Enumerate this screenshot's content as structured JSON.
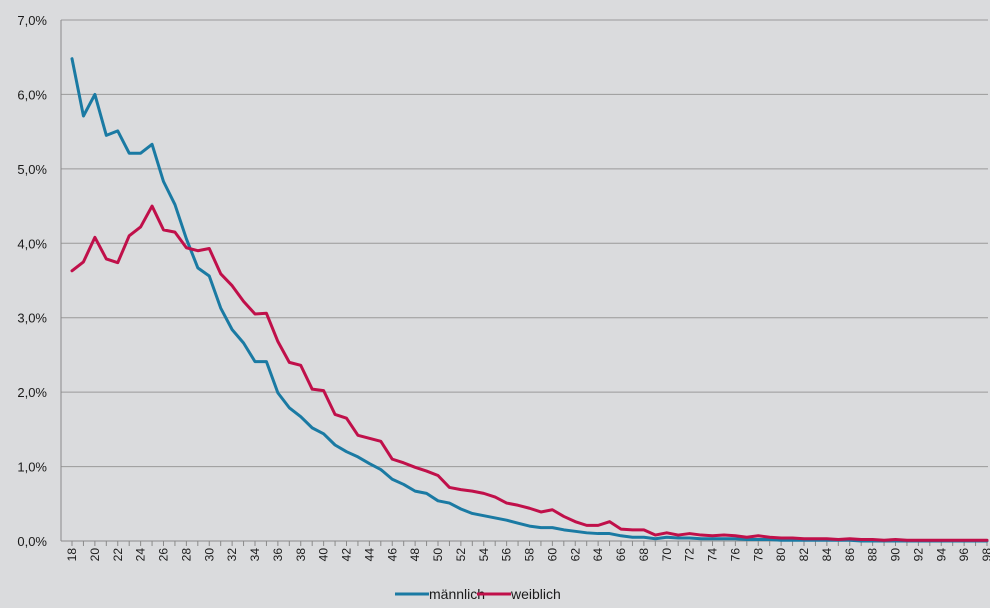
{
  "chart_data": {
    "type": "line",
    "x": [
      18,
      19,
      20,
      21,
      22,
      23,
      24,
      25,
      26,
      27,
      28,
      29,
      30,
      31,
      32,
      33,
      34,
      35,
      36,
      37,
      38,
      39,
      40,
      41,
      42,
      43,
      44,
      45,
      46,
      47,
      48,
      49,
      50,
      51,
      52,
      53,
      54,
      55,
      56,
      57,
      58,
      59,
      60,
      61,
      62,
      63,
      64,
      65,
      66,
      67,
      68,
      69,
      70,
      71,
      72,
      73,
      74,
      75,
      76,
      77,
      78,
      79,
      80,
      81,
      82,
      83,
      84,
      85,
      86,
      87,
      88,
      89,
      90,
      91,
      92,
      93,
      94,
      95,
      96,
      97,
      98
    ],
    "x_tick_labels": [
      "18",
      "20",
      "22",
      "24",
      "26",
      "28",
      "30",
      "32",
      "34",
      "36",
      "38",
      "40",
      "42",
      "44",
      "46",
      "48",
      "50",
      "52",
      "54",
      "56",
      "58",
      "60",
      "62",
      "64",
      "66",
      "68",
      "70",
      "72",
      "74",
      "76",
      "78",
      "80",
      "82",
      "84",
      "86",
      "88",
      "90",
      "92",
      "94",
      "96",
      "98"
    ],
    "y_tick_labels": [
      "0,0%",
      "1,0%",
      "2,0%",
      "3,0%",
      "4,0%",
      "5,0%",
      "6,0%",
      "7,0%"
    ],
    "ylim": [
      0,
      7
    ],
    "grid": true,
    "legend_position": "bottom",
    "series": [
      {
        "name": "männlich",
        "color": "#1a7aa3",
        "values": [
          6.48,
          5.71,
          6.0,
          5.45,
          5.51,
          5.21,
          5.21,
          5.33,
          4.83,
          4.52,
          4.06,
          3.67,
          3.56,
          3.13,
          2.84,
          2.66,
          2.41,
          2.41,
          1.99,
          1.79,
          1.67,
          1.52,
          1.44,
          1.29,
          1.2,
          1.13,
          1.04,
          0.96,
          0.83,
          0.76,
          0.67,
          0.64,
          0.54,
          0.51,
          0.43,
          0.37,
          0.34,
          0.31,
          0.28,
          0.24,
          0.2,
          0.18,
          0.18,
          0.15,
          0.13,
          0.11,
          0.1,
          0.1,
          0.07,
          0.05,
          0.05,
          0.03,
          0.05,
          0.04,
          0.04,
          0.03,
          0.03,
          0.03,
          0.03,
          0.02,
          0.02,
          0.02,
          0.01,
          0.01,
          0.01,
          0.01,
          0.01,
          0.01,
          0.01,
          0.0,
          0.0,
          0.0,
          0.0,
          0.0,
          0.0,
          0.0,
          0.0,
          0.0,
          0.0,
          0.0,
          0.0
        ]
      },
      {
        "name": "weiblich",
        "color": "#c0104a",
        "values": [
          3.63,
          3.75,
          4.08,
          3.79,
          3.74,
          4.1,
          4.22,
          4.5,
          4.18,
          4.15,
          3.94,
          3.9,
          3.93,
          3.59,
          3.43,
          3.22,
          3.05,
          3.06,
          2.68,
          2.4,
          2.36,
          2.04,
          2.02,
          1.7,
          1.65,
          1.42,
          1.38,
          1.34,
          1.1,
          1.05,
          0.99,
          0.94,
          0.88,
          0.72,
          0.69,
          0.67,
          0.64,
          0.59,
          0.51,
          0.48,
          0.44,
          0.39,
          0.42,
          0.33,
          0.26,
          0.21,
          0.21,
          0.26,
          0.16,
          0.15,
          0.15,
          0.08,
          0.11,
          0.08,
          0.1,
          0.08,
          0.07,
          0.08,
          0.07,
          0.05,
          0.07,
          0.05,
          0.04,
          0.04,
          0.03,
          0.03,
          0.03,
          0.02,
          0.03,
          0.02,
          0.02,
          0.01,
          0.02,
          0.01,
          0.01,
          0.01,
          0.01,
          0.01,
          0.01,
          0.01,
          0.01
        ]
      }
    ]
  }
}
